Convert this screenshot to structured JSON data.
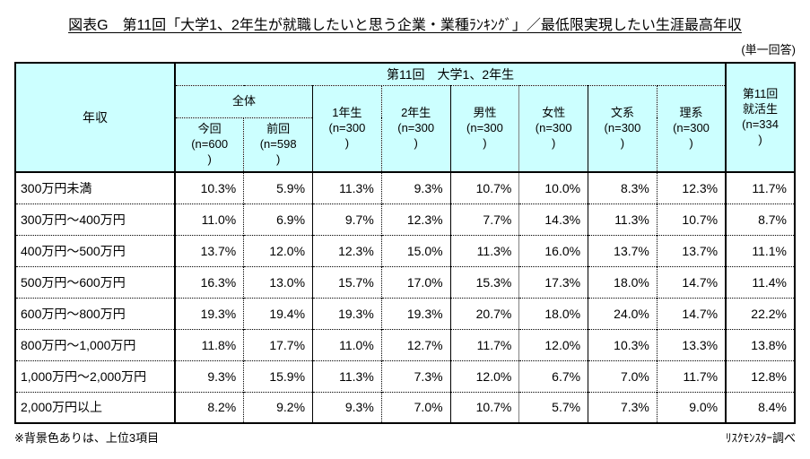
{
  "page": {
    "title": "図表G　第11回「大学1、2年生が就職したいと思う企業・業種ﾗﾝｷﾝｸﾞ」／最低限実現したい生涯最高年収",
    "answer_type": "(単一回答)",
    "note": "※背景色ありは、上位3項目",
    "source": "ﾘｽｸﾓﾝｽﾀｰ調べ"
  },
  "colors": {
    "header_bg": "#CCFFFF",
    "highlight_bg": "#FACDF2"
  },
  "table": {
    "header": {
      "corner": "年収",
      "group": "第11回　大学1、2年生",
      "zentai": "全体",
      "cols": [
        "今回\n(n=600\n)",
        "前回\n(n=598\n)",
        "1年生\n(n=300\n)",
        "2年生\n(n=300\n)",
        "男性\n(n=300\n)",
        "女性\n(n=300\n)",
        "文系\n(n=300\n)",
        "理系\n(n=300\n)"
      ],
      "shukatsu": "第11回\n就活生\n(n=334\n)"
    },
    "rows": [
      {
        "label": "300万円未満",
        "values": [
          "10.3%",
          "5.9%",
          "11.3%",
          "9.3%",
          "10.7%",
          "10.0%",
          "8.3%",
          "12.3%",
          "11.7%"
        ],
        "highlights": [
          false,
          false,
          false,
          false,
          false,
          false,
          false,
          false,
          false
        ]
      },
      {
        "label": "300万円～400万円",
        "values": [
          "11.0%",
          "6.9%",
          "9.7%",
          "12.3%",
          "7.7%",
          "14.3%",
          "11.3%",
          "10.7%",
          "8.7%"
        ],
        "highlights": [
          false,
          false,
          false,
          false,
          false,
          false,
          false,
          false,
          false
        ]
      },
      {
        "label": "400万円～500万円",
        "values": [
          "13.7%",
          "12.0%",
          "12.3%",
          "15.0%",
          "11.3%",
          "16.0%",
          "13.7%",
          "13.7%",
          "11.1%"
        ],
        "highlights": [
          true,
          false,
          true,
          true,
          false,
          true,
          true,
          true,
          false
        ]
      },
      {
        "label": "500万円～600万円",
        "values": [
          "16.3%",
          "13.0%",
          "15.7%",
          "17.0%",
          "15.3%",
          "17.3%",
          "18.0%",
          "14.7%",
          "11.4%"
        ],
        "highlights": [
          true,
          false,
          true,
          true,
          true,
          true,
          true,
          true,
          false
        ]
      },
      {
        "label": "600万円～800万円",
        "values": [
          "19.3%",
          "19.4%",
          "19.3%",
          "19.3%",
          "20.7%",
          "18.0%",
          "24.0%",
          "14.7%",
          "22.2%"
        ],
        "highlights": [
          true,
          true,
          true,
          true,
          true,
          true,
          true,
          true,
          true
        ]
      },
      {
        "label": "800万円～1,000万円",
        "values": [
          "11.8%",
          "17.7%",
          "11.0%",
          "12.7%",
          "11.7%",
          "12.0%",
          "10.3%",
          "13.3%",
          "13.8%"
        ],
        "highlights": [
          false,
          true,
          false,
          false,
          false,
          false,
          false,
          false,
          true
        ]
      },
      {
        "label": "1,000万円～2,000万円",
        "values": [
          "9.3%",
          "15.9%",
          "11.3%",
          "7.3%",
          "12.0%",
          "6.7%",
          "7.0%",
          "11.7%",
          "12.8%"
        ],
        "highlights": [
          false,
          true,
          false,
          false,
          true,
          false,
          false,
          false,
          true
        ]
      },
      {
        "label": "2,000万円以上",
        "values": [
          "8.2%",
          "9.2%",
          "9.3%",
          "7.0%",
          "10.7%",
          "5.7%",
          "7.3%",
          "9.0%",
          "8.4%"
        ],
        "highlights": [
          false,
          false,
          false,
          false,
          false,
          false,
          false,
          false,
          false
        ]
      }
    ]
  }
}
